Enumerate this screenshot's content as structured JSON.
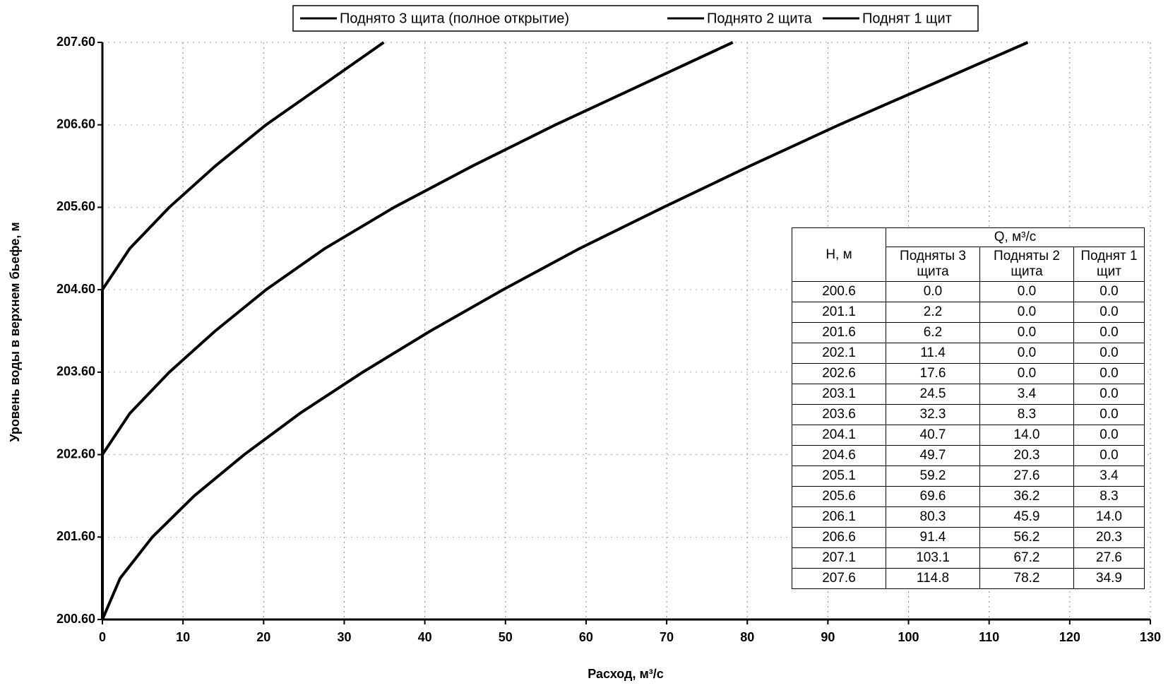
{
  "chart_data": {
    "type": "line",
    "legend": "top",
    "xlabel": "Расход, м³/с",
    "ylabel": "Уровень воды в верхнем бьефе, м",
    "levels": [
      200.6,
      201.1,
      201.6,
      202.1,
      202.6,
      203.1,
      203.6,
      204.1,
      204.6,
      205.1,
      205.6,
      206.1,
      206.6,
      207.1,
      207.6
    ],
    "series": [
      {
        "name": "Поднято 3 щита (полное открытие)",
        "color": "#000000",
        "values": [
          0,
          2.2,
          6.2,
          11.4,
          17.6,
          24.5,
          32.3,
          40.7,
          49.7,
          59.2,
          69.6,
          80.3,
          91.4,
          103.1,
          114.8
        ],
        "value_labels": [
          "0.0",
          "2.2",
          "6.2",
          "11.4",
          "17.6",
          "24.5",
          "32.3",
          "40.7",
          "49.7",
          "59.2",
          "69.6",
          "80.3",
          "91.4",
          "103.1",
          "114.8"
        ]
      },
      {
        "name": "Поднято 2 щита",
        "color": "#000000",
        "values": [
          0,
          0,
          0,
          0,
          0,
          3.4,
          8.3,
          14,
          20.3,
          27.6,
          36.2,
          45.9,
          56.2,
          67.2,
          78.2
        ],
        "value_labels": [
          "0.0",
          "0.0",
          "0.0",
          "0.0",
          "0.0",
          "3.4",
          "8.3",
          "14.0",
          "20.3",
          "27.6",
          "36.2",
          "45.9",
          "56.2",
          "67.2",
          "78.2"
        ]
      },
      {
        "name": "Поднят 1 щит",
        "color": "#000000",
        "values": [
          0,
          0,
          0,
          0,
          0,
          0,
          0,
          0,
          0,
          3.4,
          8.3,
          14,
          20.3,
          27.6,
          34.9
        ],
        "value_labels": [
          "0.0",
          "0.0",
          "0.0",
          "0.0",
          "0.0",
          "0.0",
          "0.0",
          "0.0",
          "0.0",
          "3.4",
          "8.3",
          "14.0",
          "20.3",
          "27.6",
          "34.9"
        ]
      }
    ],
    "xlim": [
      0,
      130
    ],
    "xticks": [
      0,
      10,
      20,
      30,
      40,
      50,
      60,
      70,
      80,
      90,
      100,
      110,
      120,
      130
    ],
    "ylim": [
      200.6,
      207.6
    ],
    "yticks": [
      {
        "value": 200.6,
        "label": "200.60"
      },
      {
        "value": 201.6,
        "label": "201.60"
      },
      {
        "value": 202.6,
        "label": "202.60"
      },
      {
        "value": 203.6,
        "label": "203.60"
      },
      {
        "value": 204.6,
        "label": "204.60"
      },
      {
        "value": 205.6,
        "label": "205.60"
      },
      {
        "value": 206.6,
        "label": "206.60"
      },
      {
        "value": 207.6,
        "label": "207.60"
      }
    ],
    "grid": true,
    "table": {
      "h_header": "H, м",
      "q_header": "Q, м³/с",
      "columns": [
        "Подняты 3 щита",
        "Подняты 2 щита",
        "Поднят 1 щит"
      ]
    }
  }
}
